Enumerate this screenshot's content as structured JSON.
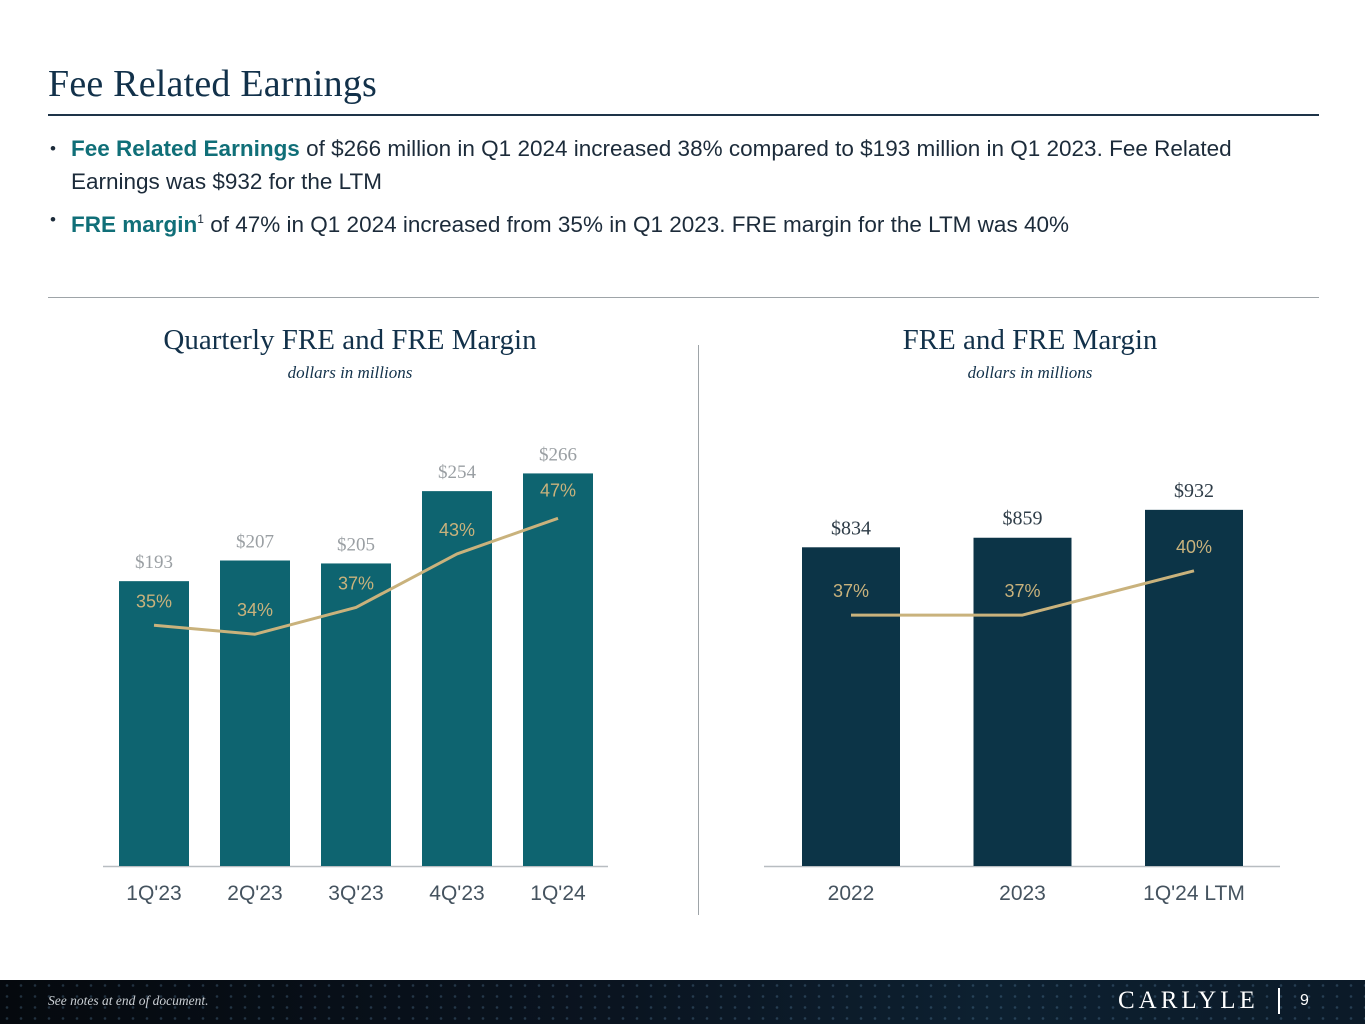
{
  "header": {
    "title": "Fee Related Earnings"
  },
  "bullets": [
    {
      "highlight": "Fee Related Earnings",
      "text": " of $266 million in  Q1 2024  increased 38% compared to $193 million in Q1 2023. Fee Related Earnings was $932 for the LTM"
    },
    {
      "highlight": "FRE margin",
      "footnote_marker": "1",
      "text": " of 47% in Q1 2024 increased from 35% in Q1 2023. FRE margin for the LTM was 40%"
    }
  ],
  "colors": {
    "quarterly_bar": "#0e6470",
    "annual_bar": "#0c3447",
    "margin_line": "#c9b27c",
    "bar_label": "#9a9fa3",
    "axis_label": "#45535f",
    "highlight_text": "#106f78"
  },
  "chart_data": [
    {
      "type": "bar",
      "title": "Quarterly FRE and FRE Margin",
      "subtitle": "dollars in millions",
      "categories": [
        "1Q'23",
        "2Q'23",
        "3Q'23",
        "4Q'23",
        "1Q'24"
      ],
      "series": [
        {
          "name": "FRE",
          "kind": "bar",
          "values": [
            193,
            207,
            205,
            254,
            266
          ],
          "labels": [
            "$193",
            "$207",
            "$205",
            "$254",
            "$266"
          ]
        },
        {
          "name": "FRE Margin",
          "kind": "line",
          "values": [
            35,
            34,
            37,
            43,
            47
          ],
          "labels": [
            "35%",
            "34%",
            "37%",
            "43%",
            "47%"
          ]
        }
      ],
      "ylim": [
        0,
        290
      ],
      "margin_ylim": [
        8,
        56
      ]
    },
    {
      "type": "bar",
      "title": "FRE and FRE Margin",
      "subtitle": "dollars in millions",
      "categories": [
        "2022",
        "2023",
        "1Q'24 LTM"
      ],
      "series": [
        {
          "name": "FRE",
          "kind": "bar",
          "values": [
            834,
            859,
            932
          ],
          "labels": [
            "$834",
            "$859",
            "$932"
          ]
        },
        {
          "name": "FRE Margin",
          "kind": "line",
          "values": [
            37,
            37,
            40
          ],
          "labels": [
            "37%",
            "37%",
            "40%"
          ]
        }
      ],
      "ylim": [
        0,
        1120
      ],
      "margin_ylim": [
        20,
        49
      ]
    }
  ],
  "footer": {
    "note": "See notes at end of document.",
    "brand": "CARLYLE",
    "page_number": "9"
  }
}
